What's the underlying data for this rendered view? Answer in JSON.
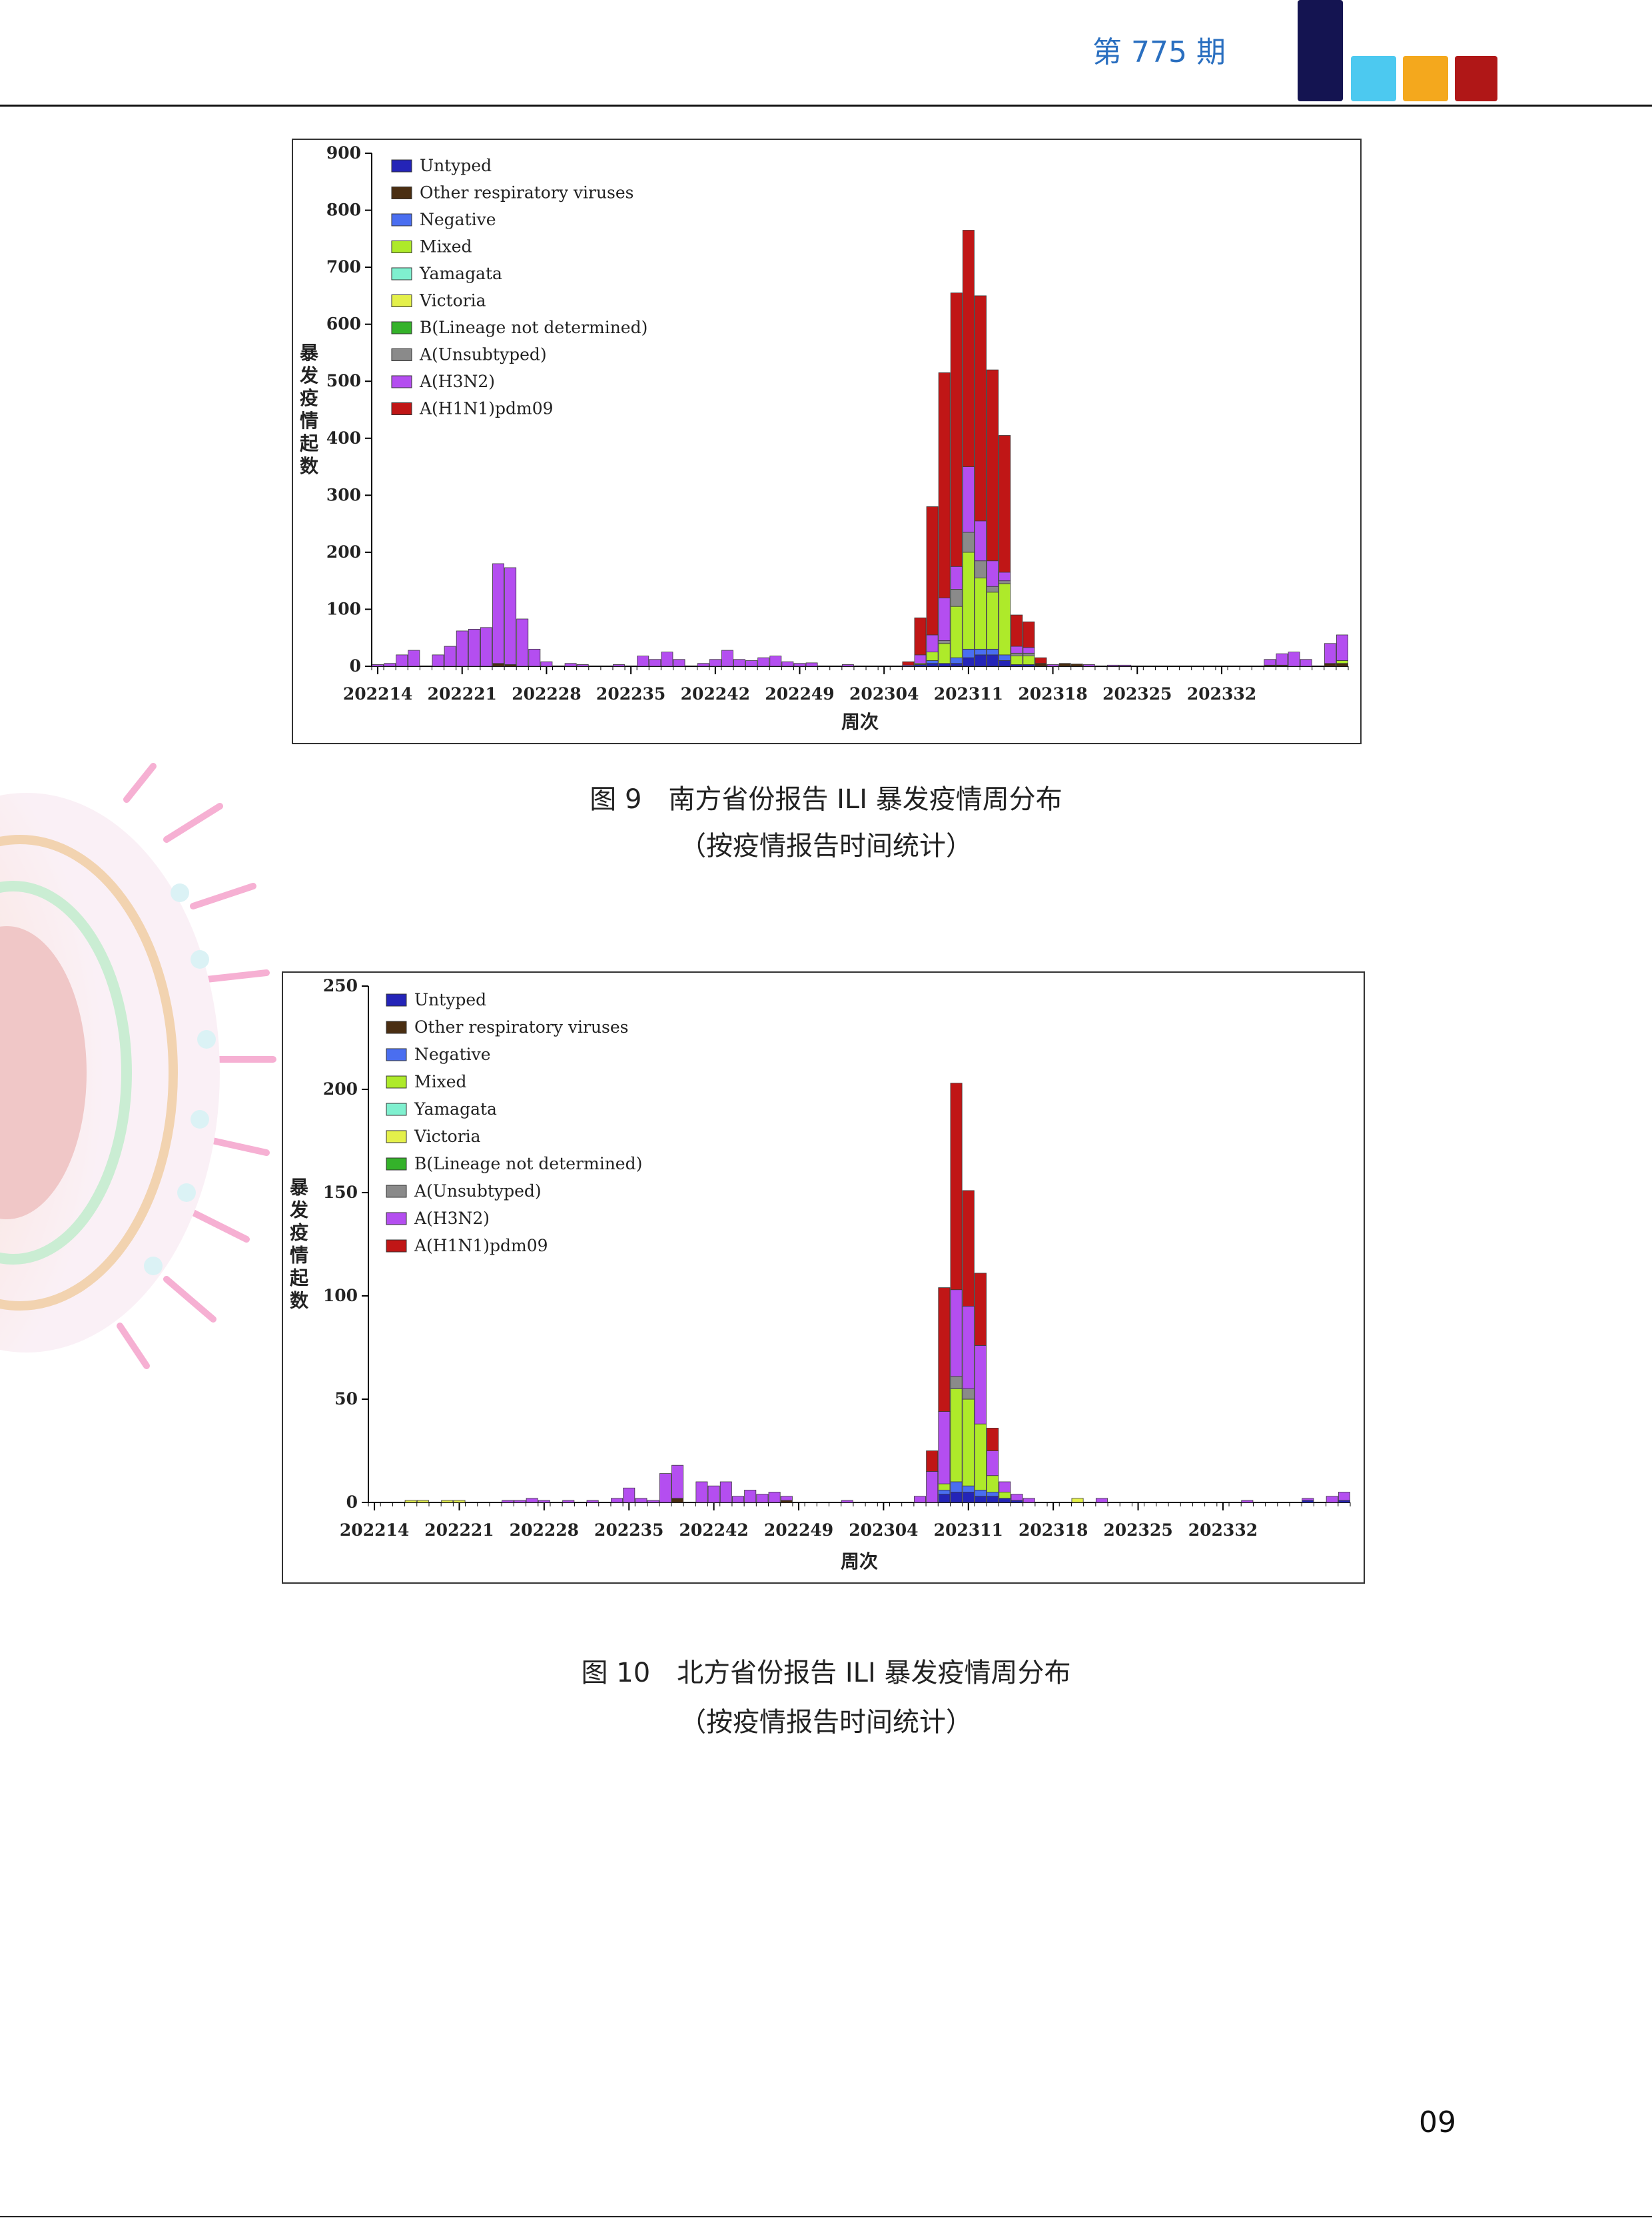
{
  "header": {
    "issue": "第 775 期"
  },
  "colors": {
    "header_blocks": [
      "#141451",
      "#4cc9f0",
      "#f4a81d",
      "#b01717"
    ],
    "issue_text": "#2a6fc0"
  },
  "legend": [
    {
      "name": "Untyped",
      "color": "#2424b8"
    },
    {
      "name": "Other respiratory viruses",
      "color": "#4a2e12"
    },
    {
      "name": "Negative",
      "color": "#4a6ef0"
    },
    {
      "name": "Mixed",
      "color": "#aeea2a"
    },
    {
      "name": "Yamagata",
      "color": "#7ff0cf"
    },
    {
      "name": "Victoria",
      "color": "#e4f04a"
    },
    {
      "name": "B(Lineage not determined)",
      "color": "#34b22a"
    },
    {
      "name": "A(Unsubtyped)",
      "color": "#8a8a8a"
    },
    {
      "name": "A(H3N2)",
      "color": "#b44ef0"
    },
    {
      "name": "A(H1N1)pdm09",
      "color": "#c01616"
    }
  ],
  "chart_data": [
    {
      "type": "bar",
      "stacked": true,
      "xlabel": "周次",
      "ylabel": "暴发疫情起数",
      "ylim": [
        0,
        900
      ],
      "yticks": [
        0,
        100,
        200,
        300,
        400,
        500,
        600,
        700,
        800,
        900
      ],
      "xtick_labels": [
        "202214",
        "202221",
        "202228",
        "202235",
        "202242",
        "202249",
        "202304",
        "202311",
        "202318",
        "202325",
        "202332"
      ],
      "legend_position": "top-left",
      "total_weeks": 81,
      "weeks": [
        {
          "i": 0,
          "H3N2": 3
        },
        {
          "i": 1,
          "H3N2": 5
        },
        {
          "i": 2,
          "H3N2": 20
        },
        {
          "i": 3,
          "H3N2": 28
        },
        {
          "i": 5,
          "H3N2": 20
        },
        {
          "i": 6,
          "H3N2": 35
        },
        {
          "i": 7,
          "H3N2": 62
        },
        {
          "i": 8,
          "H3N2": 65
        },
        {
          "i": 9,
          "H3N2": 68
        },
        {
          "i": 10,
          "H3N2": 175,
          "Other": 5
        },
        {
          "i": 11,
          "H3N2": 170,
          "Other": 3
        },
        {
          "i": 12,
          "H3N2": 83
        },
        {
          "i": 13,
          "H3N2": 30
        },
        {
          "i": 14,
          "H3N2": 8
        },
        {
          "i": 16,
          "H3N2": 5
        },
        {
          "i": 17,
          "H3N2": 3
        },
        {
          "i": 20,
          "H3N2": 3
        },
        {
          "i": 22,
          "H3N2": 18
        },
        {
          "i": 23,
          "H3N2": 12
        },
        {
          "i": 24,
          "H3N2": 25
        },
        {
          "i": 25,
          "H3N2": 12
        },
        {
          "i": 27,
          "H3N2": 5
        },
        {
          "i": 28,
          "H3N2": 12
        },
        {
          "i": 29,
          "H3N2": 28
        },
        {
          "i": 30,
          "H3N2": 12
        },
        {
          "i": 31,
          "H3N2": 10
        },
        {
          "i": 32,
          "H3N2": 15
        },
        {
          "i": 33,
          "H3N2": 18
        },
        {
          "i": 34,
          "H3N2": 8
        },
        {
          "i": 35,
          "H3N2": 5
        },
        {
          "i": 36,
          "H3N2": 6
        },
        {
          "i": 39,
          "H3N2": 3
        },
        {
          "i": 44,
          "H1N1": 6,
          "H3N2": 2
        },
        {
          "i": 45,
          "H1N1": 65,
          "H3N2": 15,
          "Mixed": 2,
          "Untyped": 3
        },
        {
          "i": 46,
          "H1N1": 225,
          "H3N2": 30,
          "Mixed": 15,
          "Untyped": 5,
          "Negative": 5
        },
        {
          "i": 47,
          "H1N1": 395,
          "H3N2": 75,
          "Mixed": 35,
          "Untyped": 5,
          "Unsubtyped": 5
        },
        {
          "i": 48,
          "H1N1": 480,
          "H3N2": 40,
          "Unsubtyped": 30,
          "Mixed": 90,
          "Negative": 10,
          "Untyped": 5
        },
        {
          "i": 49,
          "H1N1": 415,
          "H3N2": 115,
          "Unsubtyped": 35,
          "Mixed": 170,
          "Negative": 15,
          "Untyped": 15
        },
        {
          "i": 50,
          "H1N1": 395,
          "H3N2": 70,
          "Unsubtyped": 30,
          "Mixed": 125,
          "Negative": 10,
          "Untyped": 20
        },
        {
          "i": 51,
          "H1N1": 335,
          "H3N2": 45,
          "Unsubtyped": 10,
          "Mixed": 100,
          "Negative": 10,
          "Untyped": 20
        },
        {
          "i": 52,
          "H1N1": 240,
          "H3N2": 15,
          "Unsubtyped": 5,
          "Mixed": 125,
          "Negative": 10,
          "Untyped": 10
        },
        {
          "i": 53,
          "H1N1": 55,
          "H3N2": 12,
          "Unsubtyped": 5,
          "Mixed": 15,
          "Untyped": 3
        },
        {
          "i": 54,
          "H1N1": 45,
          "H3N2": 10,
          "Unsubtyped": 5,
          "Mixed": 15,
          "Untyped": 3
        },
        {
          "i": 55,
          "H1N1": 10,
          "Other": 5
        },
        {
          "i": 56,
          "H3N2": 3
        },
        {
          "i": 57,
          "Other": 5
        },
        {
          "i": 58,
          "Other": 4
        },
        {
          "i": 59,
          "H3N2": 3
        },
        {
          "i": 61,
          "H3N2": 2
        },
        {
          "i": 62,
          "H3N2": 2
        },
        {
          "i": 74,
          "H3N2": 10,
          "Other": 2
        },
        {
          "i": 75,
          "H3N2": 20,
          "Other": 2
        },
        {
          "i": 76,
          "H3N2": 25
        },
        {
          "i": 77,
          "H3N2": 12
        },
        {
          "i": 79,
          "H3N2": 35,
          "Other": 5
        },
        {
          "i": 80,
          "H3N2": 45,
          "Other": 5,
          "Mixed": 5
        }
      ]
    },
    {
      "type": "bar",
      "stacked": true,
      "xlabel": "周次",
      "ylabel": "暴发疫情起数",
      "ylim": [
        0,
        250
      ],
      "yticks": [
        0,
        50,
        100,
        150,
        200,
        250
      ],
      "xtick_labels": [
        "202214",
        "202221",
        "202228",
        "202235",
        "202242",
        "202249",
        "202304",
        "202311",
        "202318",
        "202325",
        "202332"
      ],
      "legend_position": "top-left",
      "total_weeks": 81,
      "weeks": [
        {
          "i": 3,
          "Victoria": 1
        },
        {
          "i": 4,
          "Victoria": 1
        },
        {
          "i": 6,
          "Victoria": 1
        },
        {
          "i": 7,
          "Victoria": 1
        },
        {
          "i": 11,
          "H3N2": 1
        },
        {
          "i": 12,
          "H3N2": 1
        },
        {
          "i": 13,
          "H3N2": 2
        },
        {
          "i": 14,
          "H3N2": 1
        },
        {
          "i": 16,
          "H3N2": 1
        },
        {
          "i": 18,
          "H3N2": 1
        },
        {
          "i": 20,
          "H3N2": 2
        },
        {
          "i": 21,
          "H3N2": 7
        },
        {
          "i": 22,
          "H3N2": 2
        },
        {
          "i": 23,
          "H3N2": 1
        },
        {
          "i": 24,
          "H3N2": 14
        },
        {
          "i": 25,
          "H3N2": 16,
          "Other": 2
        },
        {
          "i": 27,
          "H3N2": 10
        },
        {
          "i": 28,
          "H3N2": 8
        },
        {
          "i": 29,
          "H3N2": 10
        },
        {
          "i": 30,
          "H3N2": 3
        },
        {
          "i": 31,
          "H3N2": 6
        },
        {
          "i": 32,
          "H3N2": 4
        },
        {
          "i": 33,
          "H3N2": 5
        },
        {
          "i": 34,
          "H3N2": 2,
          "Other": 1
        },
        {
          "i": 39,
          "H3N2": 1
        },
        {
          "i": 45,
          "H3N2": 3
        },
        {
          "i": 46,
          "H1N1": 10,
          "H3N2": 15
        },
        {
          "i": 47,
          "H1N1": 60,
          "H3N2": 35,
          "Mixed": 3,
          "Untyped": 4,
          "Negative": 2
        },
        {
          "i": 48,
          "H1N1": 100,
          "H3N2": 42,
          "Unsubtyped": 6,
          "Mixed": 45,
          "Untyped": 5,
          "Negative": 5
        },
        {
          "i": 49,
          "H1N1": 56,
          "H3N2": 40,
          "Unsubtyped": 5,
          "Mixed": 42,
          "Untyped": 5,
          "Negative": 3
        },
        {
          "i": 50,
          "H1N1": 35,
          "H3N2": 38,
          "Mixed": 32,
          "Untyped": 3,
          "Negative": 3
        },
        {
          "i": 51,
          "H1N1": 11,
          "H3N2": 12,
          "Mixed": 8,
          "Untyped": 3,
          "Negative": 2
        },
        {
          "i": 52,
          "H3N2": 5,
          "Mixed": 3,
          "Untyped": 2
        },
        {
          "i": 53,
          "H3N2": 3,
          "Untyped": 1
        },
        {
          "i": 54,
          "H3N2": 2
        },
        {
          "i": 58,
          "Victoria": 2
        },
        {
          "i": 60,
          "H3N2": 2
        },
        {
          "i": 72,
          "H3N2": 1
        },
        {
          "i": 77,
          "H3N2": 1,
          "Untyped": 1
        },
        {
          "i": 79,
          "H3N2": 3
        },
        {
          "i": 80,
          "H3N2": 4,
          "Untyped": 1
        }
      ]
    }
  ],
  "figures": [
    {
      "caption": "图 9　南方省份报告 ILI 暴发疫情周分布",
      "subcaption": "（按疫情报告时间统计）"
    },
    {
      "caption": "图 10　北方省份报告 ILI 暴发疫情周分布",
      "subcaption": "（按疫情报告时间统计）"
    }
  ],
  "page_number": "09"
}
